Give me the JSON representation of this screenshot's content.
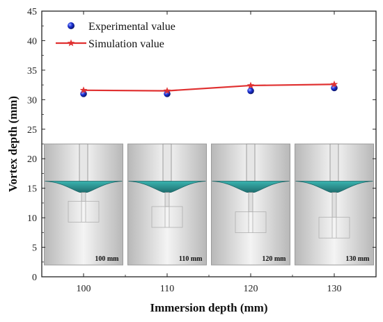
{
  "chart_data": {
    "type": "line",
    "xlabel": "Immersion depth (mm)",
    "ylabel": "Vortex depth (mm)",
    "xlim": [
      95,
      135
    ],
    "ylim": [
      0,
      45
    ],
    "x_ticks": [
      100,
      110,
      120,
      130
    ],
    "y_ticks": [
      0,
      5,
      10,
      15,
      20,
      25,
      30,
      35,
      40,
      45
    ],
    "x": [
      100,
      110,
      120,
      130
    ],
    "series": [
      {
        "name": "Experimental value",
        "style": "scatter",
        "color": "#1a2fd6",
        "values": [
          31.0,
          31.0,
          31.5,
          32.0
        ]
      },
      {
        "name": "Simulation value",
        "style": "line-star",
        "color": "#e03030",
        "values": [
          31.6,
          31.5,
          32.4,
          32.6
        ]
      }
    ],
    "legend_position": "top-left",
    "grid": false,
    "inset_images": [
      {
        "label": "100 mm",
        "immersion": 100
      },
      {
        "label": "110 mm",
        "immersion": 110
      },
      {
        "label": "120 mm",
        "immersion": 120
      },
      {
        "label": "130 mm",
        "immersion": 130
      }
    ],
    "colors": {
      "vortex": "#2a9a9a",
      "vessel": "#d9d9d9"
    }
  }
}
